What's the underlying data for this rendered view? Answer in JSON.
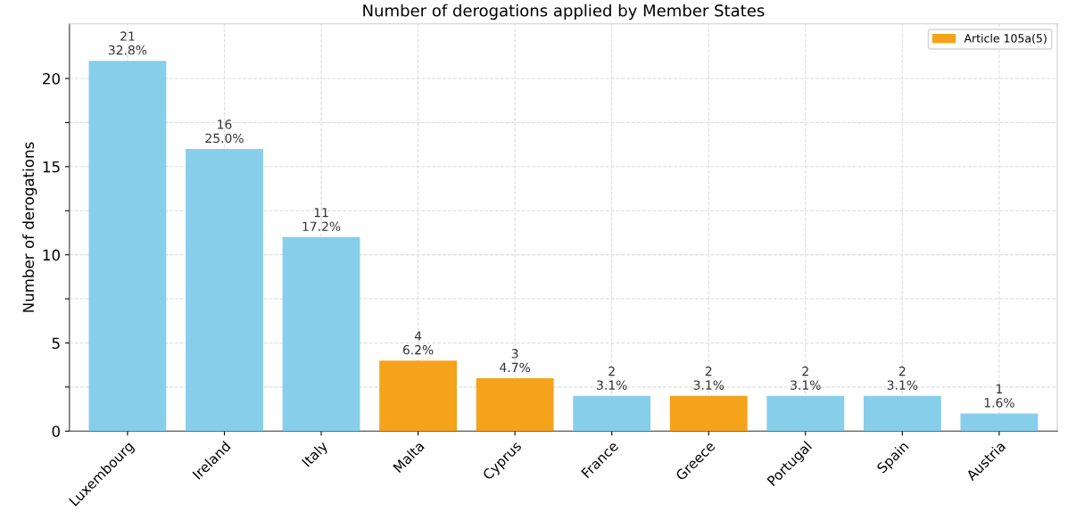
{
  "chart_data": {
    "type": "bar",
    "title": "Number of derogations applied by Member States",
    "ylabel": "Number of derogations",
    "categories": [
      "Luxembourg",
      "Ireland",
      "Italy",
      "Malta",
      "Cyprus",
      "France",
      "Greece",
      "Portugal",
      "Spain",
      "Austria"
    ],
    "series": [
      {
        "color": "#87ceeb",
        "values": [
          21,
          16,
          11,
          null,
          null,
          2,
          null,
          2,
          2,
          1
        ],
        "value_labels": [
          "21\n32.8%",
          "16\n25.0%",
          "11\n17.2%",
          null,
          null,
          "2\n3.1%",
          null,
          "2\n3.1%",
          "2\n3.1%",
          "1\n1.6%"
        ]
      },
      {
        "name": "Article 105a(5)",
        "color": "#f5a31a",
        "values": [
          null,
          null,
          null,
          4,
          3,
          null,
          2,
          null,
          null,
          null
        ],
        "value_labels": [
          null,
          null,
          null,
          "4\n6.2%",
          "3\n4.7%",
          null,
          "2\n3.1%",
          null,
          null,
          null
        ]
      }
    ],
    "ylim": [
      0,
      23.1
    ],
    "yticks": [
      0,
      {
        "value": 2.5,
        "label": null
      },
      5,
      {
        "value": 7.5,
        "label": null
      },
      10,
      {
        "value": 12.5,
        "label": null
      },
      15,
      {
        "value": 17.5,
        "label": null
      },
      20
    ],
    "grid": true,
    "legend": "top right"
  }
}
